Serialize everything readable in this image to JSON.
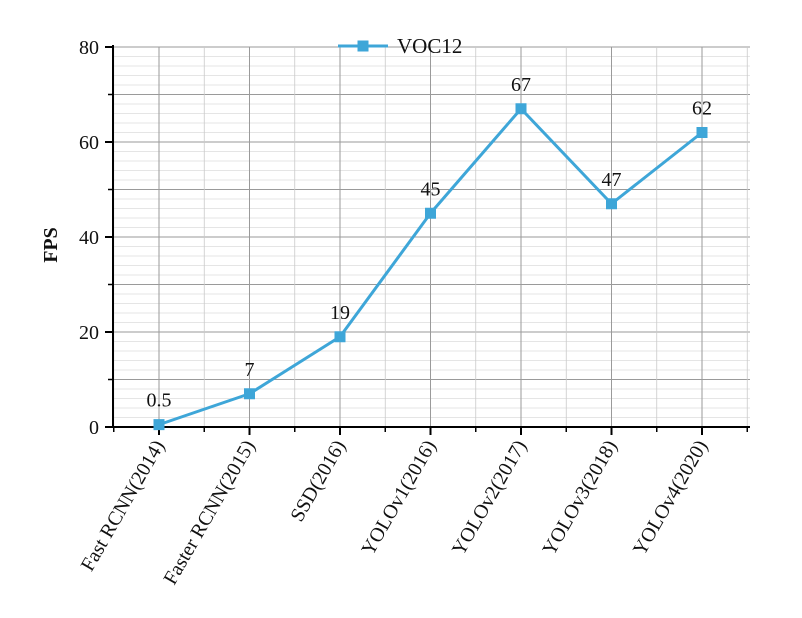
{
  "chart_data": {
    "type": "line",
    "title": "",
    "xlabel": "",
    "ylabel": "FPS",
    "categories": [
      "Fast RCNN(2014)",
      "Faster RCNN(2015)",
      "SSD(2016)",
      "YOLOv1(2016)",
      "YOLOv2(2017)",
      "YOLOv3(2018)",
      "YOLOv4(2020)"
    ],
    "series": [
      {
        "name": "VOC12",
        "values": [
          0.5,
          7,
          19,
          45,
          67,
          47,
          62
        ],
        "labels": [
          "0.5",
          "7",
          "19",
          "45",
          "67",
          "47",
          "62"
        ],
        "color": "#3ea6d8",
        "marker": "square"
      }
    ],
    "ylim": [
      0,
      80
    ],
    "yticks": [
      "0",
      "20",
      "40",
      "60",
      "80"
    ],
    "grid": true,
    "legend_position": "top-center"
  }
}
